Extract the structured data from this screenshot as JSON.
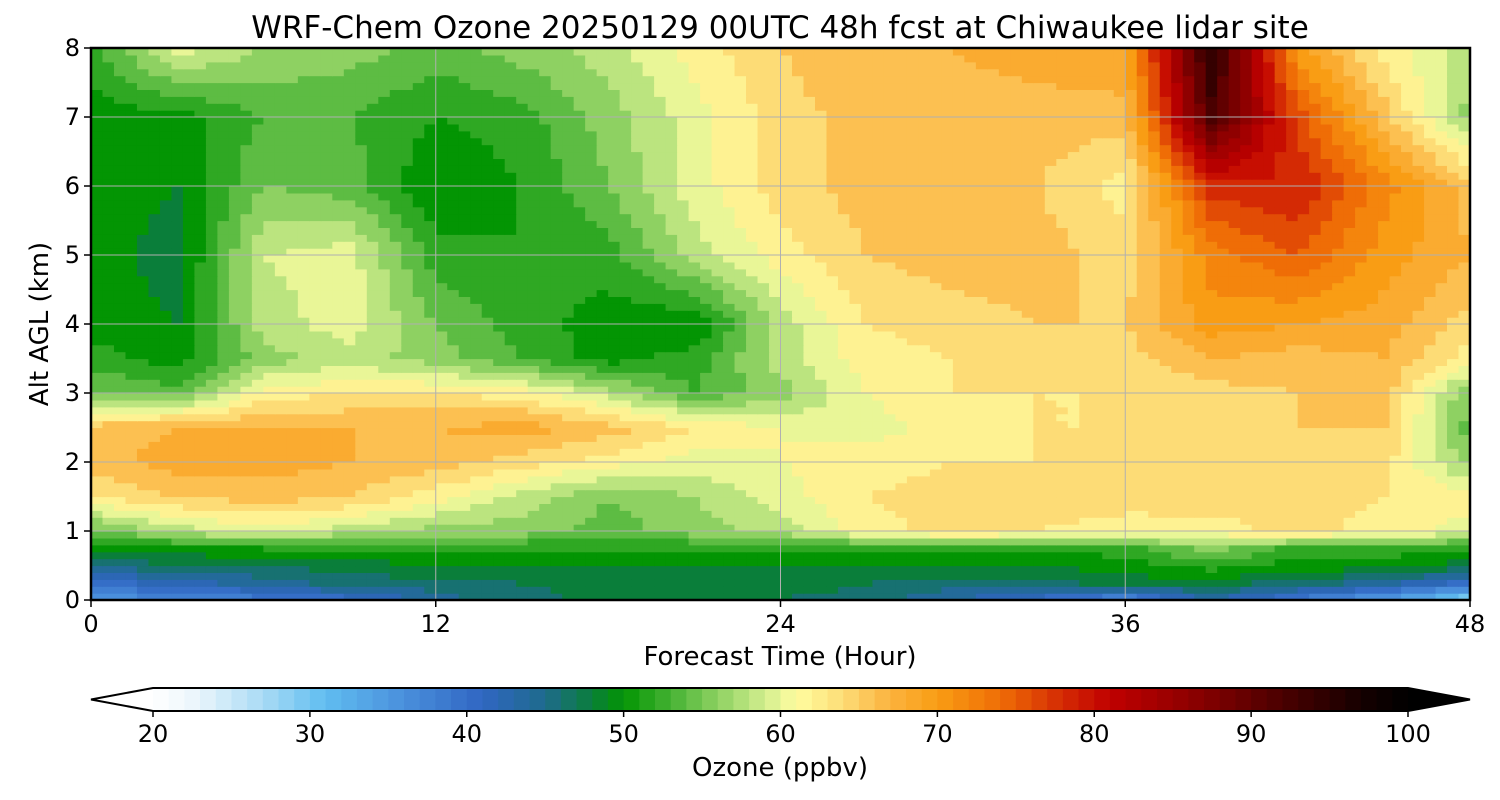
{
  "chart_data": {
    "type": "heatmap",
    "title": "WRF-Chem Ozone  20250129 00UTC 48h fcst at Chiwaukee lidar site",
    "xlabel": "Forecast Time (Hour)",
    "ylabel": "Alt AGL (km)",
    "xlim": [
      0,
      48
    ],
    "ylim": [
      0,
      8
    ],
    "xticks": [
      0,
      12,
      24,
      36,
      48
    ],
    "yticks": [
      0,
      1,
      2,
      3,
      4,
      5,
      6,
      7,
      8
    ],
    "grid": true,
    "colorbar": {
      "label": "Ozone  (ppbv)",
      "min": 20,
      "max": 100,
      "ticks": [
        20,
        30,
        40,
        50,
        60,
        70,
        80,
        90,
        100
      ],
      "extend": "both",
      "orientation": "horizontal"
    },
    "x": [
      0,
      3,
      6,
      9,
      12,
      15,
      18,
      21,
      24,
      27,
      30,
      33,
      36,
      39,
      42,
      45,
      48
    ],
    "y": [
      0,
      0.25,
      0.5,
      0.75,
      1.0,
      1.5,
      2.0,
      2.5,
      3.0,
      3.5,
      4.0,
      5.0,
      6.0,
      7.0,
      8.0
    ],
    "z": [
      [
        36,
        36,
        38,
        40,
        44,
        46,
        48,
        48,
        47,
        46,
        43,
        40,
        36,
        43,
        38,
        34,
        28
      ],
      [
        40,
        42,
        44,
        46,
        46,
        47,
        48,
        48,
        48,
        47,
        46,
        46,
        48,
        48,
        46,
        44,
        40
      ],
      [
        45,
        47,
        47,
        48,
        49,
        49,
        49,
        49,
        49,
        49,
        49,
        49,
        50,
        52,
        50,
        50,
        48
      ],
      [
        50,
        50,
        51,
        51,
        51,
        51,
        51,
        51,
        51,
        51,
        51,
        51,
        52,
        56,
        52,
        52,
        51
      ],
      [
        54,
        58,
        60,
        58,
        56,
        56,
        54,
        56,
        58,
        62,
        64,
        63,
        62,
        62,
        64,
        62,
        60
      ],
      [
        63,
        65,
        66,
        65,
        62,
        58,
        55,
        57,
        60,
        63,
        64,
        64,
        64,
        64,
        64,
        63,
        62
      ],
      [
        66,
        68,
        68,
        67,
        66,
        64,
        62,
        60,
        61,
        62,
        63,
        63,
        64,
        64,
        64,
        64,
        56
      ],
      [
        66,
        67,
        67,
        67,
        67,
        68,
        66,
        63,
        61,
        60,
        62,
        63,
        63,
        65,
        65,
        65,
        54
      ],
      [
        55,
        54,
        62,
        63,
        63,
        62,
        58,
        53,
        56,
        61,
        63,
        63,
        63,
        64,
        65,
        66,
        55
      ],
      [
        52,
        50,
        56,
        58,
        56,
        53,
        50,
        52,
        58,
        62,
        63,
        64,
        64,
        67,
        66,
        67,
        62
      ],
      [
        50,
        49,
        58,
        60,
        55,
        52,
        50,
        49,
        58,
        63,
        64,
        65,
        65,
        70,
        69,
        68,
        64
      ],
      [
        50,
        48,
        59,
        60,
        52,
        51,
        52,
        58,
        62,
        65,
        66,
        66,
        64,
        72,
        75,
        70,
        67
      ],
      [
        50,
        49,
        55,
        54,
        49,
        51,
        55,
        60,
        64,
        66,
        67,
        65,
        62,
        78,
        79,
        72,
        66
      ],
      [
        50,
        50,
        53,
        53,
        51,
        52,
        56,
        60,
        64,
        66,
        66,
        66,
        66,
        92,
        76,
        66,
        56
      ],
      [
        52,
        60,
        57,
        56,
        54,
        56,
        58,
        62,
        65,
        67,
        67,
        68,
        69,
        95,
        70,
        62,
        58
      ]
    ]
  }
}
